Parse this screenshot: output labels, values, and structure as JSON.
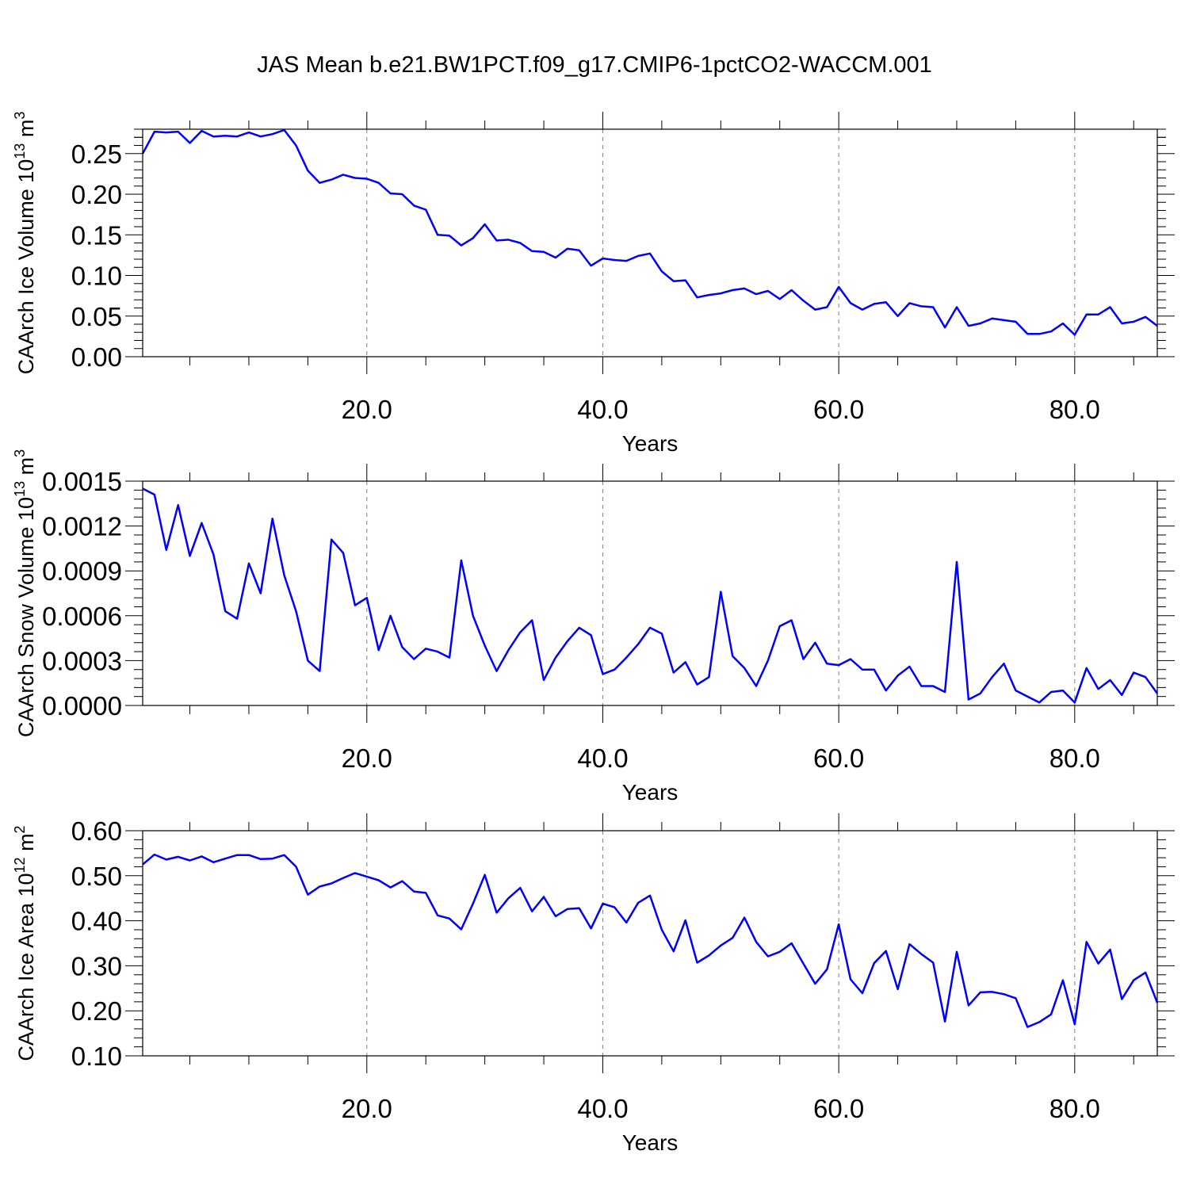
{
  "title": "JAS Mean b.e21.BW1PCT.f09_g17.CMIP6-1pctCO2-WACCM.001",
  "colors": {
    "line": "#0000ff",
    "axis": "#000000",
    "grid": "#808080"
  },
  "chart_data": [
    {
      "type": "line",
      "title": "",
      "xlabel": "Years",
      "ylabel": "CAArch Ice Volume 10",
      "ylabel_exp": "13",
      "ylabel_unit": " m",
      "ylabel_unit_exp": "3",
      "xlim": [
        1,
        87
      ],
      "ylim": [
        0.0,
        0.28
      ],
      "x_ticks": [
        20,
        40,
        60,
        80
      ],
      "x_tick_labels": [
        "20.0",
        "40.0",
        "60.0",
        "80.0"
      ],
      "y_ticks": [
        0.0,
        0.05,
        0.1,
        0.15,
        0.2,
        0.25
      ],
      "y_tick_labels": [
        "0.00",
        "0.05",
        "0.10",
        "0.15",
        "0.20",
        "0.25"
      ],
      "grid": "vertical dashed at major x ticks",
      "series": [
        {
          "x": [
            1,
            2,
            3,
            4,
            5,
            6,
            7,
            8,
            9,
            10,
            11,
            12,
            13,
            14,
            15,
            16,
            17,
            18,
            19,
            20,
            21,
            22,
            23,
            24,
            25,
            26,
            27,
            28,
            29,
            30,
            31,
            32,
            33,
            34,
            35,
            36,
            37,
            38,
            39,
            40,
            41,
            42,
            43,
            44,
            45,
            46,
            47,
            48,
            49,
            50,
            51,
            52,
            53,
            54,
            55,
            56,
            57,
            58,
            59,
            60,
            61,
            62,
            63,
            64,
            65,
            66,
            67,
            68,
            69,
            70,
            71,
            72,
            73,
            74,
            75,
            76,
            77,
            78,
            79,
            80,
            81,
            82,
            83,
            84,
            85,
            86,
            87
          ],
          "values": [
            0.25,
            0.277,
            0.276,
            0.277,
            0.263,
            0.278,
            0.271,
            0.272,
            0.271,
            0.276,
            0.271,
            0.274,
            0.279,
            0.26,
            0.229,
            0.214,
            0.218,
            0.224,
            0.22,
            0.219,
            0.214,
            0.201,
            0.2,
            0.186,
            0.181,
            0.15,
            0.149,
            0.137,
            0.146,
            0.163,
            0.143,
            0.144,
            0.14,
            0.13,
            0.129,
            0.122,
            0.133,
            0.131,
            0.112,
            0.121,
            0.119,
            0.118,
            0.124,
            0.127,
            0.105,
            0.093,
            0.094,
            0.073,
            0.076,
            0.078,
            0.082,
            0.084,
            0.077,
            0.081,
            0.071,
            0.082,
            0.069,
            0.058,
            0.061,
            0.086,
            0.066,
            0.058,
            0.065,
            0.067,
            0.05,
            0.066,
            0.062,
            0.061,
            0.036,
            0.061,
            0.038,
            0.041,
            0.047,
            0.045,
            0.043,
            0.028,
            0.028,
            0.031,
            0.041,
            0.027,
            0.052,
            0.052,
            0.061,
            0.041,
            0.043,
            0.049,
            0.038
          ]
        }
      ]
    },
    {
      "type": "line",
      "title": "",
      "xlabel": "Years",
      "ylabel": "CAArch Snow Volume 10",
      "ylabel_exp": "13",
      "ylabel_unit": " m",
      "ylabel_unit_exp": "3",
      "xlim": [
        1,
        87
      ],
      "ylim": [
        0.0,
        0.0015
      ],
      "x_ticks": [
        20,
        40,
        60,
        80
      ],
      "x_tick_labels": [
        "20.0",
        "40.0",
        "60.0",
        "80.0"
      ],
      "y_ticks": [
        0.0,
        0.0003,
        0.0006,
        0.0009,
        0.0012,
        0.0015
      ],
      "y_tick_labels": [
        "0.0000",
        "0.0003",
        "0.0006",
        "0.0009",
        "0.0012",
        "0.0015"
      ],
      "grid": "vertical dashed at major x ticks",
      "series": [
        {
          "x": [
            1,
            2,
            3,
            4,
            5,
            6,
            7,
            8,
            9,
            10,
            11,
            12,
            13,
            14,
            15,
            16,
            17,
            18,
            19,
            20,
            21,
            22,
            23,
            24,
            25,
            26,
            27,
            28,
            29,
            30,
            31,
            32,
            33,
            34,
            35,
            36,
            37,
            38,
            39,
            40,
            41,
            42,
            43,
            44,
            45,
            46,
            47,
            48,
            49,
            50,
            51,
            52,
            53,
            54,
            55,
            56,
            57,
            58,
            59,
            60,
            61,
            62,
            63,
            64,
            65,
            66,
            67,
            68,
            69,
            70,
            71,
            72,
            73,
            74,
            75,
            76,
            77,
            78,
            79,
            80,
            81,
            82,
            83,
            84,
            85,
            86,
            87
          ],
          "values": [
            0.00145,
            0.00141,
            0.00104,
            0.00134,
            0.001,
            0.00122,
            0.00101,
            0.00063,
            0.00058,
            0.00095,
            0.00075,
            0.00125,
            0.00087,
            0.00063,
            0.0003,
            0.00023,
            0.00111,
            0.00102,
            0.00067,
            0.00072,
            0.00037,
            0.0006,
            0.00039,
            0.00031,
            0.00038,
            0.00036,
            0.00032,
            0.00097,
            0.0006,
            0.0004,
            0.00023,
            0.00037,
            0.00049,
            0.00057,
            0.00017,
            0.00032,
            0.00043,
            0.00052,
            0.00047,
            0.00021,
            0.00024,
            0.00032,
            0.00041,
            0.00052,
            0.00048,
            0.00022,
            0.00029,
            0.00014,
            0.00019,
            0.00076,
            0.00033,
            0.00025,
            0.00013,
            0.0003,
            0.00053,
            0.00057,
            0.00031,
            0.00042,
            0.00028,
            0.00027,
            0.00031,
            0.00024,
            0.00024,
            0.0001,
            0.0002,
            0.00026,
            0.00013,
            0.00013,
            9e-05,
            0.00096,
            4e-05,
            8e-05,
            0.00019,
            0.00028,
            0.0001,
            6e-05,
            2e-05,
            9e-05,
            0.0001,
            2e-05,
            0.00025,
            0.00011,
            0.00017,
            7e-05,
            0.00022,
            0.00019,
            8e-05
          ]
        }
      ]
    },
    {
      "type": "line",
      "title": "",
      "xlabel": "Years",
      "ylabel": "CAArch Ice Area 10",
      "ylabel_exp": "12",
      "ylabel_unit": " m",
      "ylabel_unit_exp": "2",
      "xlim": [
        1,
        87
      ],
      "ylim": [
        0.1,
        0.6
      ],
      "x_ticks": [
        20,
        40,
        60,
        80
      ],
      "x_tick_labels": [
        "20.0",
        "40.0",
        "60.0",
        "80.0"
      ],
      "y_ticks": [
        0.1,
        0.2,
        0.3,
        0.4,
        0.5,
        0.6
      ],
      "y_tick_labels": [
        "0.10",
        "0.20",
        "0.30",
        "0.40",
        "0.50",
        "0.60"
      ],
      "grid": "vertical dashed at major x ticks",
      "series": [
        {
          "x": [
            1,
            2,
            3,
            4,
            5,
            6,
            7,
            8,
            9,
            10,
            11,
            12,
            13,
            14,
            15,
            16,
            17,
            18,
            19,
            20,
            21,
            22,
            23,
            24,
            25,
            26,
            27,
            28,
            29,
            30,
            31,
            32,
            33,
            34,
            35,
            36,
            37,
            38,
            39,
            40,
            41,
            42,
            43,
            44,
            45,
            46,
            47,
            48,
            49,
            50,
            51,
            52,
            53,
            54,
            55,
            56,
            57,
            58,
            59,
            60,
            61,
            62,
            63,
            64,
            65,
            66,
            67,
            68,
            69,
            70,
            71,
            72,
            73,
            74,
            75,
            76,
            77,
            78,
            79,
            80,
            81,
            82,
            83,
            84,
            85,
            86,
            87
          ],
          "values": [
            0.525,
            0.547,
            0.536,
            0.542,
            0.534,
            0.543,
            0.53,
            0.538,
            0.546,
            0.546,
            0.537,
            0.538,
            0.546,
            0.52,
            0.458,
            0.476,
            0.483,
            0.495,
            0.506,
            0.498,
            0.49,
            0.474,
            0.488,
            0.465,
            0.462,
            0.412,
            0.405,
            0.381,
            0.438,
            0.502,
            0.418,
            0.45,
            0.473,
            0.421,
            0.453,
            0.41,
            0.426,
            0.428,
            0.383,
            0.438,
            0.43,
            0.396,
            0.44,
            0.456,
            0.38,
            0.332,
            0.401,
            0.307,
            0.323,
            0.345,
            0.362,
            0.407,
            0.353,
            0.321,
            0.331,
            0.35,
            0.305,
            0.26,
            0.292,
            0.392,
            0.27,
            0.239,
            0.306,
            0.333,
            0.248,
            0.348,
            0.326,
            0.307,
            0.176,
            0.331,
            0.212,
            0.241,
            0.242,
            0.237,
            0.228,
            0.164,
            0.175,
            0.192,
            0.268,
            0.17,
            0.353,
            0.305,
            0.336,
            0.226,
            0.268,
            0.285,
            0.218
          ]
        }
      ]
    }
  ]
}
